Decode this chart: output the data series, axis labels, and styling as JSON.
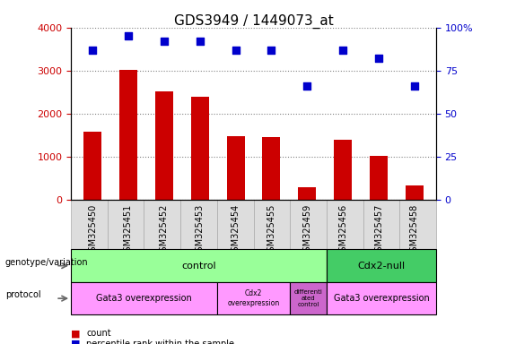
{
  "title": "GDS3949 / 1449073_at",
  "samples": [
    "GSM325450",
    "GSM325451",
    "GSM325452",
    "GSM325453",
    "GSM325454",
    "GSM325455",
    "GSM325459",
    "GSM325456",
    "GSM325457",
    "GSM325458"
  ],
  "counts": [
    1580,
    3020,
    2520,
    2380,
    1480,
    1460,
    290,
    1390,
    1010,
    330
  ],
  "percentiles": [
    87,
    95,
    92,
    92,
    87,
    87,
    66,
    87,
    82,
    66
  ],
  "bar_color": "#cc0000",
  "dot_color": "#0000cc",
  "ylim_left": [
    0,
    4000
  ],
  "ylim_right": [
    0,
    100
  ],
  "yticks_left": [
    0,
    1000,
    2000,
    3000,
    4000
  ],
  "yticks_right": [
    0,
    25,
    50,
    75,
    100
  ],
  "control_color": "#99ff99",
  "cdx2null_color": "#44cc66",
  "protocol_light_color": "#ff99ff",
  "protocol_dark_color": "#cc66cc",
  "legend_count_color": "#cc0000",
  "legend_dot_color": "#0000cc",
  "bg_color": "#ffffff",
  "tick_label_fontsize": 7,
  "title_fontsize": 11
}
